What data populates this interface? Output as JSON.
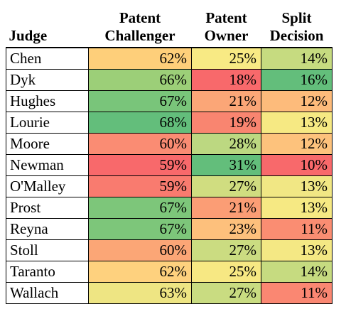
{
  "headers": {
    "judge": "Judge",
    "challenger_line1": "Patent",
    "challenger_line2": "Challenger",
    "owner_line1": "Patent",
    "owner_line2": "Owner",
    "split_line1": "Split",
    "split_line2": "Decision"
  },
  "rows": [
    {
      "judge": "Chen",
      "challenger": "62%",
      "owner": "25%",
      "split": "14%",
      "c_color": "#fecf7a",
      "o_color": "#f8ea84",
      "s_color": "#c6db80"
    },
    {
      "judge": "Dyk",
      "challenger": "66%",
      "owner": "18%",
      "split": "16%",
      "c_color": "#9ccf78",
      "o_color": "#f8696b",
      "s_color": "#63be7b"
    },
    {
      "judge": "Hughes",
      "challenger": "67%",
      "owner": "21%",
      "split": "12%",
      "c_color": "#79c57a",
      "o_color": "#fba677",
      "s_color": "#fdbb7b"
    },
    {
      "judge": "Lourie",
      "challenger": "68%",
      "owner": "19%",
      "split": "13%",
      "c_color": "#63be7b",
      "o_color": "#f98570",
      "s_color": "#f6e983"
    },
    {
      "judge": "Moore",
      "challenger": "60%",
      "owner": "28%",
      "split": "12%",
      "c_color": "#fa8c73",
      "o_color": "#bcd881",
      "s_color": "#fdc27c"
    },
    {
      "judge": "Newman",
      "challenger": "59%",
      "owner": "31%",
      "split": "10%",
      "c_color": "#f8696b",
      "o_color": "#63be7b",
      "s_color": "#f8696b"
    },
    {
      "judge": "O'Malley",
      "challenger": "59%",
      "owner": "27%",
      "split": "13%",
      "c_color": "#f97b6f",
      "o_color": "#d0dd80",
      "s_color": "#f1e784"
    },
    {
      "judge": "Prost",
      "challenger": "67%",
      "owner": "21%",
      "split": "13%",
      "c_color": "#7dc67a",
      "o_color": "#fb9d75",
      "s_color": "#f6e983"
    },
    {
      "judge": "Reyna",
      "challenger": "67%",
      "owner": "23%",
      "split": "11%",
      "c_color": "#7dc67a",
      "o_color": "#fdc07c",
      "s_color": "#fa8d72"
    },
    {
      "judge": "Stoll",
      "challenger": "60%",
      "owner": "27%",
      "split": "13%",
      "c_color": "#fba676",
      "o_color": "#cbdc81",
      "s_color": "#f4e884"
    },
    {
      "judge": "Taranto",
      "challenger": "62%",
      "owner": "25%",
      "split": "14%",
      "c_color": "#fed17e",
      "o_color": "#f7e883",
      "s_color": "#c6db80"
    },
    {
      "judge": "Wallach",
      "challenger": "63%",
      "owner": "27%",
      "split": "11%",
      "c_color": "#eee583",
      "o_color": "#c9dc81",
      "s_color": "#fa8772"
    }
  ]
}
